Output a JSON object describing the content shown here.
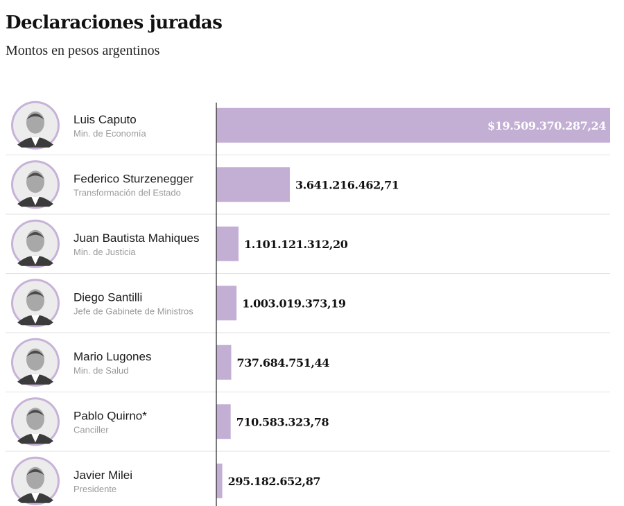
{
  "title": "Declaraciones juradas",
  "subtitle": "Montos en pesos argentinos",
  "colors": {
    "bar": "#c3afd4",
    "avatar_ring": "#c7b2d8",
    "divider": "#e2e2e2",
    "axis": "#222222",
    "label_dark": "#111111",
    "label_inside": "#ffffff"
  },
  "chart_data": {
    "type": "bar",
    "orientation": "horizontal",
    "xlim": [
      0,
      19509370287.24
    ],
    "rows": [
      {
        "name": "Luis Caputo",
        "role": "Min. de Economía",
        "value": 19509370287.24,
        "label": "$19.509.370.287,24",
        "label_inside": true,
        "avatar": "portrait-icon"
      },
      {
        "name": "Federico Sturzenegger",
        "role": "Transformación del Estado",
        "value": 3641216462.71,
        "label": "3.641.216.462,71",
        "label_inside": false,
        "avatar": "portrait-icon"
      },
      {
        "name": "Juan Bautista Mahiques",
        "role": "Min. de Justicia",
        "value": 1101121312.2,
        "label": "1.101.121.312,20",
        "label_inside": false,
        "avatar": "portrait-icon"
      },
      {
        "name": "Diego Santilli",
        "role": "Jefe de Gabinete de Ministros",
        "value": 1003019373.19,
        "label": "1.003.019.373,19",
        "label_inside": false,
        "avatar": "portrait-icon"
      },
      {
        "name": "Mario Lugones",
        "role": "Min. de Salud",
        "value": 737684751.44,
        "label": "737.684.751,44",
        "label_inside": false,
        "avatar": "portrait-icon"
      },
      {
        "name": "Pablo Quirno*",
        "role": "Canciller",
        "value": 710583323.78,
        "label": "710.583.323,78",
        "label_inside": false,
        "avatar": "portrait-icon"
      },
      {
        "name": "Javier Milei",
        "role": "Presidente",
        "value": 295182652.87,
        "label": "295.182.652,87",
        "label_inside": false,
        "avatar": "portrait-icon"
      }
    ]
  }
}
